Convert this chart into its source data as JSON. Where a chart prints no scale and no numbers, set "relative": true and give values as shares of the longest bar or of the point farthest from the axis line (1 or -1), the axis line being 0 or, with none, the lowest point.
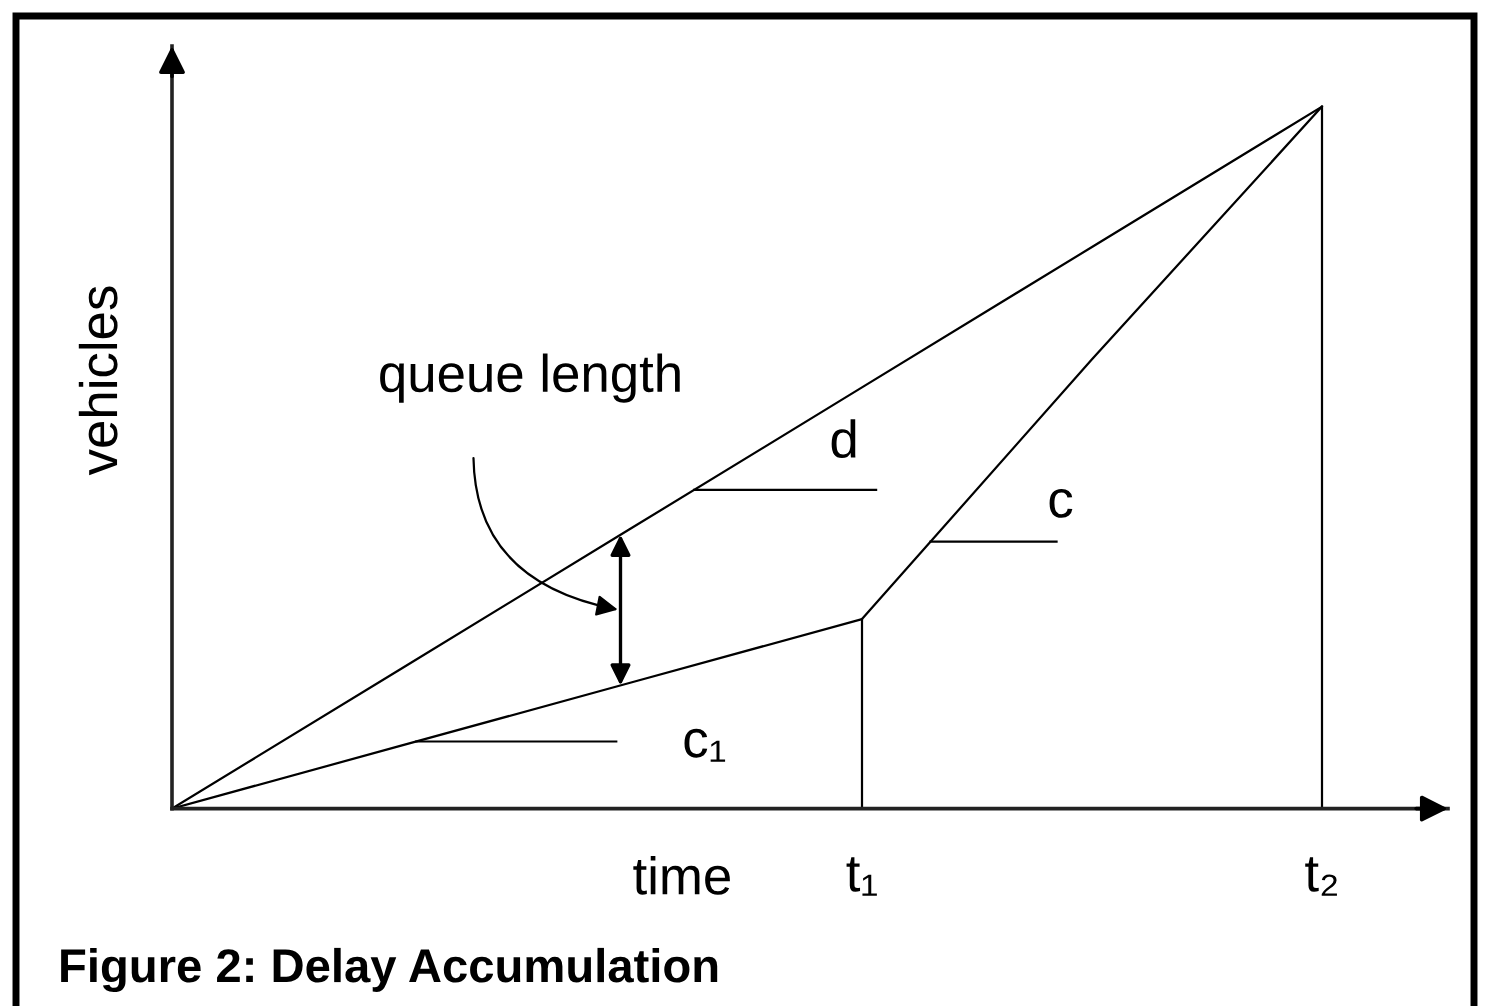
{
  "chart_data": {
    "type": "line",
    "relative": true,
    "xlabel": "time",
    "ylabel": "vehicles",
    "categories": [
      null,
      null,
      null,
      "t₁",
      null,
      "t₂"
    ],
    "series": [
      {
        "name": "d",
        "color": "#000000",
        "values": [
          0,
          0.2,
          0.4,
          0.6,
          0.8,
          1
        ]
      },
      {
        "name": "c₁",
        "color": "#000000",
        "values": [
          0,
          0.09,
          0.18,
          0.27,
          null,
          null
        ]
      },
      {
        "name": "c",
        "color": "#000000",
        "values": [
          null,
          null,
          null,
          0.27,
          0.64,
          1
        ]
      }
    ],
    "ref_lines": [
      {
        "axis": "x",
        "value": "t₁"
      },
      {
        "axis": "x",
        "value": "t₂"
      }
    ],
    "annotations": [
      "queue length",
      "Figure 2: Delay Accumulation"
    ]
  }
}
